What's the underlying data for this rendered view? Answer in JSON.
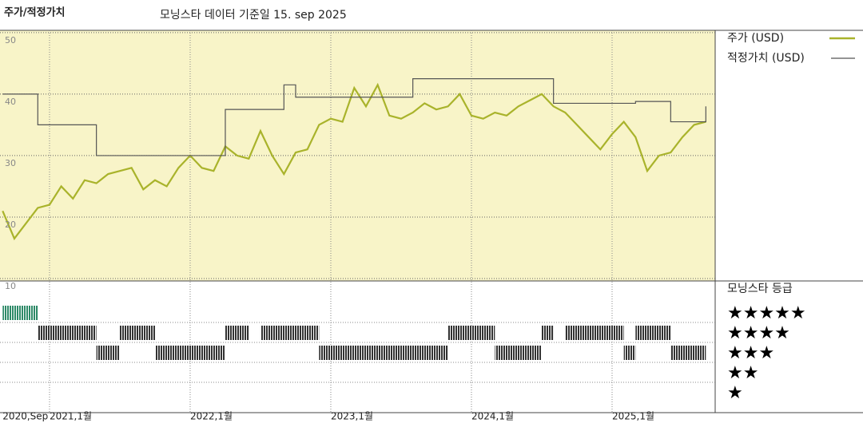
{
  "chart_data": {
    "type": "line",
    "title": "주가/적정가치",
    "subtitle": "모닝스타 데이터 기준일 15. sep 2025",
    "x": [
      "2020-09",
      "2020-10",
      "2020-11",
      "2020-12",
      "2021-01",
      "2021-02",
      "2021-03",
      "2021-04",
      "2021-05",
      "2021-06",
      "2021-07",
      "2021-08",
      "2021-09",
      "2021-10",
      "2021-11",
      "2021-12",
      "2022-01",
      "2022-02",
      "2022-03",
      "2022-04",
      "2022-05",
      "2022-06",
      "2022-07",
      "2022-08",
      "2022-09",
      "2022-10",
      "2022-11",
      "2022-12",
      "2023-01",
      "2023-02",
      "2023-03",
      "2023-04",
      "2023-05",
      "2023-06",
      "2023-07",
      "2023-08",
      "2023-09",
      "2023-10",
      "2023-11",
      "2023-12",
      "2024-01",
      "2024-02",
      "2024-03",
      "2024-04",
      "2024-05",
      "2024-06",
      "2024-07",
      "2024-08",
      "2024-09",
      "2024-10",
      "2024-11",
      "2024-12",
      "2025-01",
      "2025-02",
      "2025-03",
      "2025-04",
      "2025-05",
      "2025-06",
      "2025-07",
      "2025-08",
      "2025-09"
    ],
    "series": [
      {
        "name": "주가 (USD)",
        "color": "#a9b32b",
        "values": [
          21,
          16.5,
          19,
          21.5,
          22,
          25,
          23,
          26,
          25.5,
          27,
          27.5,
          28,
          24.5,
          26,
          25,
          28,
          30,
          28,
          27.5,
          31.5,
          30,
          29.5,
          34,
          30,
          27,
          30.5,
          31,
          35,
          36,
          35.5,
          41,
          38,
          41.5,
          36.5,
          36,
          37,
          38.5,
          37.5,
          38,
          40,
          36.5,
          36,
          37,
          36.5,
          38,
          39,
          40,
          38,
          37,
          35,
          33,
          31,
          33.5,
          35.5,
          33,
          27.5,
          30,
          30.5,
          33,
          35,
          35.5
        ]
      },
      {
        "name": "적정가치 (USD)",
        "color": "#555555",
        "step": true,
        "x": [
          "2020-09",
          "2020-12",
          "2021-05",
          "2022-04",
          "2022-09",
          "2022-10",
          "2023-08",
          "2024-08",
          "2025-03",
          "2025-06",
          "2025-09"
        ],
        "values": [
          40,
          35,
          30,
          37.5,
          41.5,
          39.5,
          42.5,
          38.5,
          38.8,
          35.5,
          38
        ]
      }
    ],
    "xlim": [
      "2020-09",
      "2025-10"
    ],
    "xticks": [
      {
        "value": "2020-09",
        "label": "2020,Sep"
      },
      {
        "value": "2021-01",
        "label": "2021,1월"
      },
      {
        "value": "2022-01",
        "label": "2022,1월"
      },
      {
        "value": "2023-01",
        "label": "2023,1월"
      },
      {
        "value": "2024-01",
        "label": "2024,1월"
      },
      {
        "value": "2025-01",
        "label": "2025,1월"
      }
    ],
    "ylim": [
      10,
      50.5
    ],
    "yticks": [
      10,
      20,
      30,
      40,
      50
    ],
    "grid": true,
    "rating_title": "모닝스타 등급",
    "rating_labels": [
      "★★★★★",
      "★★★★",
      "★★★",
      "★★",
      "★"
    ],
    "rating_colors": [
      "#2e8a68",
      "#333333",
      "#333333",
      "#333333",
      "#333333"
    ],
    "ratings": [
      {
        "start": "2020-09",
        "end": "2020-12",
        "stars": 5
      },
      {
        "start": "2020-12",
        "end": "2021-05",
        "stars": 4
      },
      {
        "start": "2021-05",
        "end": "2021-07",
        "stars": 3
      },
      {
        "start": "2021-07",
        "end": "2021-10",
        "stars": 4
      },
      {
        "start": "2021-10",
        "end": "2022-04",
        "stars": 3
      },
      {
        "start": "2022-04",
        "end": "2022-06",
        "stars": 4
      },
      {
        "start": "2022-07",
        "end": "2022-12",
        "stars": 4
      },
      {
        "start": "2022-12",
        "end": "2023-11",
        "stars": 3
      },
      {
        "start": "2023-11",
        "end": "2024-03",
        "stars": 4
      },
      {
        "start": "2024-03",
        "end": "2024-07",
        "stars": 3
      },
      {
        "start": "2024-07",
        "end": "2024-08",
        "stars": 4
      },
      {
        "start": "2024-09",
        "end": "2025-02",
        "stars": 4
      },
      {
        "start": "2025-02",
        "end": "2025-03",
        "stars": 3
      },
      {
        "start": "2025-03",
        "end": "2025-04",
        "stars": 4
      },
      {
        "start": "2025-04",
        "end": "2025-06",
        "stars": 4
      },
      {
        "start": "2025-06",
        "end": "2025-09",
        "stars": 3
      }
    ]
  }
}
